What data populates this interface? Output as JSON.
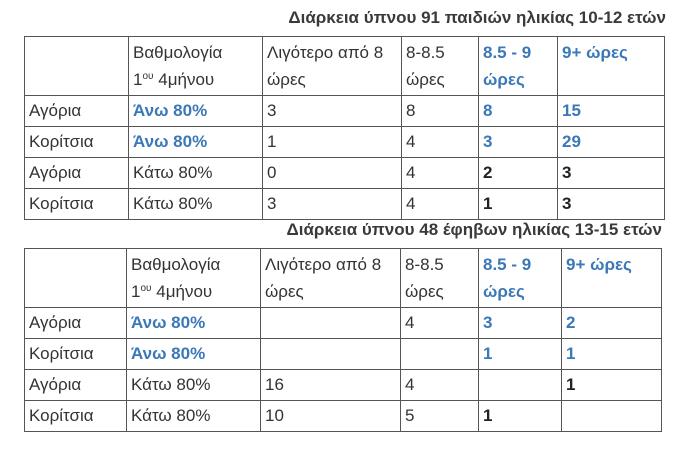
{
  "table1": {
    "title": "Διάρκεια ύπνου 91 παιδιών ηλικίας 10-12 ετών",
    "headers": {
      "rating_pre": "Βαθμολογία",
      "rating_num": "1",
      "rating_sup": "ου",
      "rating_post": "4μήνου",
      "less8": "Λιγότερο από 8 ώρες",
      "h8": "8-8.5 ώρες",
      "h85": "8.5 - 9 ώρες",
      "h9": "9+ ώρες"
    },
    "rows": [
      {
        "group": "Αγόρια",
        "score": "Άνω 80%",
        "less8": "3",
        "h8": "8",
        "h85": "8",
        "h9": "15"
      },
      {
        "group": "Κορίτσια",
        "score": "Άνω  80%",
        "less8": "1",
        "h8": "4",
        "h85": "3",
        "h9": "29"
      },
      {
        "group": "Αγόρια",
        "score": "Κάτω 80%",
        "less8": "0",
        "h8": "4",
        "h85": "2",
        "h9": "3"
      },
      {
        "group": "Κορίτσια",
        "score": "Κάτω 80%",
        "less8": "3",
        "h8": "4",
        "h85": "1",
        "h9": "3"
      }
    ]
  },
  "table2": {
    "title": "Διάρκεια ύπνου 48 έφηβων ηλικίας 13-15 ετών",
    "headers": {
      "rating_pre": "Βαθμολογία",
      "rating_num": "1",
      "rating_sup": "ου",
      "rating_post": "4μήνου",
      "less8": "Λιγότερο από 8 ώρες",
      "h8": "8-8.5 ώρες",
      "h85": "8.5 - 9 ώρες",
      "h9": "9+ ώρες"
    },
    "rows": [
      {
        "group": "Αγόρια",
        "score": "Άνω  80%",
        "less8": "",
        "h8": "4",
        "h85": "3",
        "h9": "2"
      },
      {
        "group": "Κορίτσια",
        "score": "Άνω  80%",
        "less8": "",
        "h8": "",
        "h85": "1",
        "h9": "1"
      },
      {
        "group": "Αγόρια",
        "score": "Κάτω 80%",
        "less8": "16",
        "h8": "4",
        "h85": "",
        "h9": "1"
      },
      {
        "group": "Κορίτσια",
        "score": "Κάτω 80%",
        "less8": "10",
        "h8": "5",
        "h85": "1",
        "h9": ""
      }
    ]
  },
  "colors": {
    "accent_blue": "#3a78b8",
    "text": "#333333",
    "border": "#555555"
  }
}
